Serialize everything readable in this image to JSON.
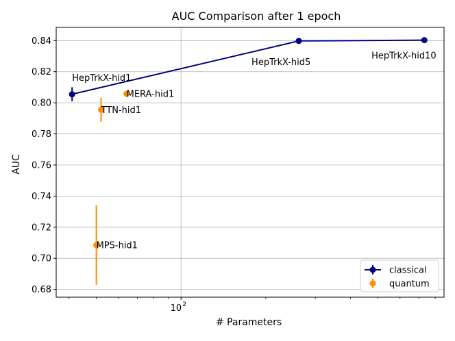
{
  "chart_data": {
    "type": "scatter",
    "title": "AUC Comparison after 1 epoch",
    "xlabel": "# Parameters",
    "ylabel": "AUC",
    "xscale": "log",
    "xlim": [
      36,
      860
    ],
    "ylim": [
      0.675,
      0.8485
    ],
    "y_ticks": [
      "0.68",
      "0.70",
      "0.72",
      "0.74",
      "0.76",
      "0.78",
      "0.80",
      "0.82",
      "0.84"
    ],
    "x_major_tick": {
      "base": "10",
      "exponent": "2",
      "value": 100
    },
    "x_minor_ticks": [
      40,
      50,
      60,
      70,
      80,
      90,
      200,
      300,
      400,
      500,
      600,
      700,
      800
    ],
    "grid": true,
    "legend_position": "lower-right",
    "series": [
      {
        "name": "classical",
        "color": "#000080",
        "connected": true,
        "points": [
          {
            "label": "HepTrkX-hid1",
            "x": 41,
            "y": 0.8055,
            "yerr": 0.0045
          },
          {
            "label": "HepTrkX-hid5",
            "x": 262,
            "y": 0.8398,
            "yerr": 0.0
          },
          {
            "label": "HepTrkX-hid10",
            "x": 732,
            "y": 0.8403,
            "yerr": 0.0
          }
        ]
      },
      {
        "name": "quantum",
        "color": "#ff8c00",
        "connected": false,
        "points": [
          {
            "label": "TTN-hid1",
            "x": 52,
            "y": 0.7955,
            "yerr": 0.0078
          },
          {
            "label": "MERA-hid1",
            "x": 64,
            "y": 0.8058,
            "yerr": 0.0
          },
          {
            "label": "MPS-hid1",
            "x": 50,
            "y": 0.7085,
            "yerr": 0.0255
          }
        ]
      }
    ],
    "annotations": [
      {
        "text": "HepTrkX-hid1",
        "x": 41,
        "y": 0.8162
      },
      {
        "text": "HepTrkX-hid5",
        "x": 178,
        "y": 0.8262
      },
      {
        "text": "HepTrkX-hid10",
        "x": 475,
        "y": 0.8305
      },
      {
        "text": "MERA-hid1",
        "x": 64,
        "y": 0.8058
      },
      {
        "text": "TTN-hid1",
        "x": 52,
        "y": 0.7955
      },
      {
        "text": "MPS-hid1",
        "x": 50,
        "y": 0.7085
      }
    ]
  }
}
